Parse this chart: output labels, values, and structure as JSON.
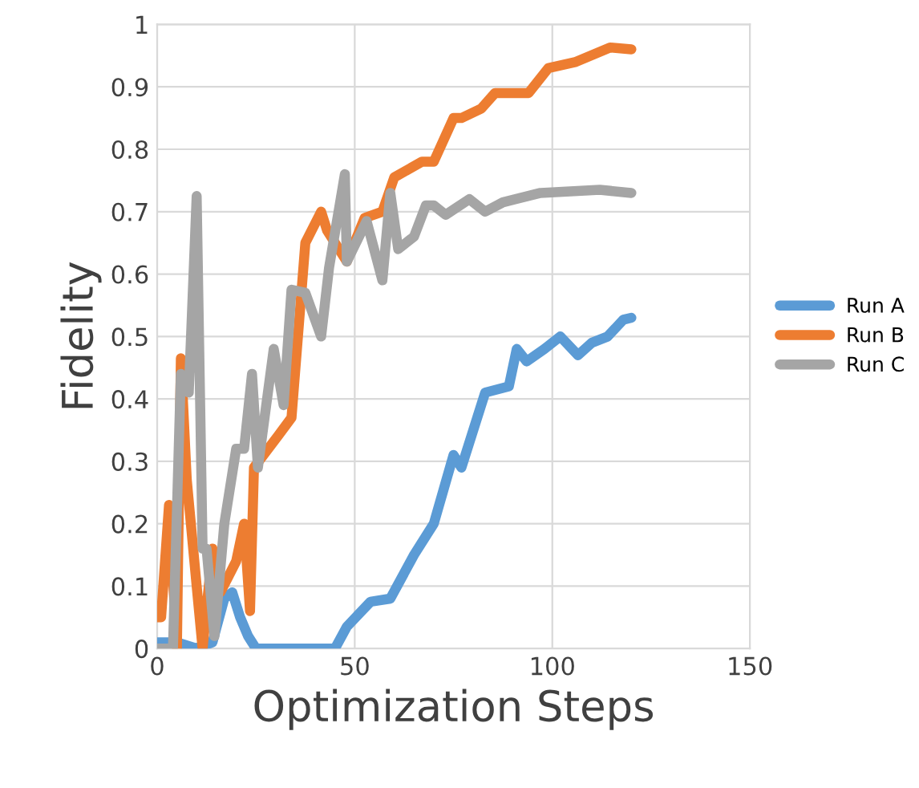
{
  "chart_data": {
    "type": "line",
    "xlabel": "Optimization Steps",
    "ylabel": "Fidelity",
    "xlim": [
      0,
      150
    ],
    "xticks": [
      0,
      50,
      100,
      150
    ],
    "ylim": [
      0,
      1
    ],
    "yticks": [
      0,
      0.1,
      0.2,
      0.3,
      0.4,
      0.5,
      0.6,
      0.7,
      0.8,
      0.9,
      1
    ],
    "grid": true,
    "legend": "right",
    "marker": "none",
    "line_style": "solid",
    "series": [
      {
        "name": "Run A",
        "color": "#5b9bd5",
        "x": [
          0,
          5,
          10,
          14,
          17,
          19,
          21,
          23,
          25,
          30,
          40,
          45,
          48,
          54,
          59,
          65,
          70,
          75,
          77,
          83,
          89,
          91,
          93.5,
          98,
          102,
          106.5,
          110,
          114,
          118,
          120
        ],
        "values": [
          0.01,
          0.01,
          0.0,
          0.01,
          0.08,
          0.09,
          0.05,
          0.02,
          0.0,
          0.0,
          0.0,
          0.0,
          0.035,
          0.075,
          0.08,
          0.15,
          0.2,
          0.31,
          0.29,
          0.41,
          0.42,
          0.48,
          0.46,
          0.48,
          0.5,
          0.47,
          0.49,
          0.5,
          0.527,
          0.53
        ]
      },
      {
        "name": "Run B",
        "color": "#ed7d31",
        "x": [
          0,
          1,
          3,
          5,
          6,
          7.5,
          10,
          11.5,
          14,
          16,
          20,
          22,
          23.5,
          24.5,
          30.5,
          34,
          37.5,
          41.5,
          43,
          48,
          52.5,
          57,
          60,
          67,
          70,
          75,
          77,
          82,
          85.5,
          94,
          99,
          106,
          114.6,
          120
        ],
        "values": [
          0.05,
          0.05,
          0.23,
          0.0,
          0.465,
          0.27,
          0.1,
          0.0,
          0.16,
          0.09,
          0.14,
          0.2,
          0.06,
          0.29,
          0.34,
          0.37,
          0.65,
          0.7,
          0.67,
          0.62,
          0.69,
          0.7,
          0.755,
          0.78,
          0.78,
          0.85,
          0.85,
          0.865,
          0.89,
          0.89,
          0.93,
          0.94,
          0.963,
          0.96
        ]
      },
      {
        "name": "Run C",
        "color": "#a5a5a5",
        "x": [
          0,
          1,
          4,
          6,
          8,
          10,
          11.5,
          12.5,
          14.5,
          17,
          20,
          22,
          24,
          25.5,
          29.5,
          32,
          34,
          37.5,
          41.5,
          43.5,
          47.5,
          48,
          53,
          57,
          59,
          61,
          65,
          68,
          70,
          73,
          79,
          83,
          87.5,
          97,
          112,
          120
        ],
        "values": [
          0.0,
          0.0,
          0.0,
          0.44,
          0.41,
          0.725,
          0.16,
          0.16,
          0.02,
          0.2,
          0.32,
          0.32,
          0.44,
          0.29,
          0.48,
          0.39,
          0.575,
          0.57,
          0.5,
          0.61,
          0.76,
          0.62,
          0.685,
          0.59,
          0.73,
          0.64,
          0.66,
          0.71,
          0.71,
          0.695,
          0.72,
          0.7,
          0.715,
          0.73,
          0.735,
          0.73
        ]
      }
    ]
  }
}
